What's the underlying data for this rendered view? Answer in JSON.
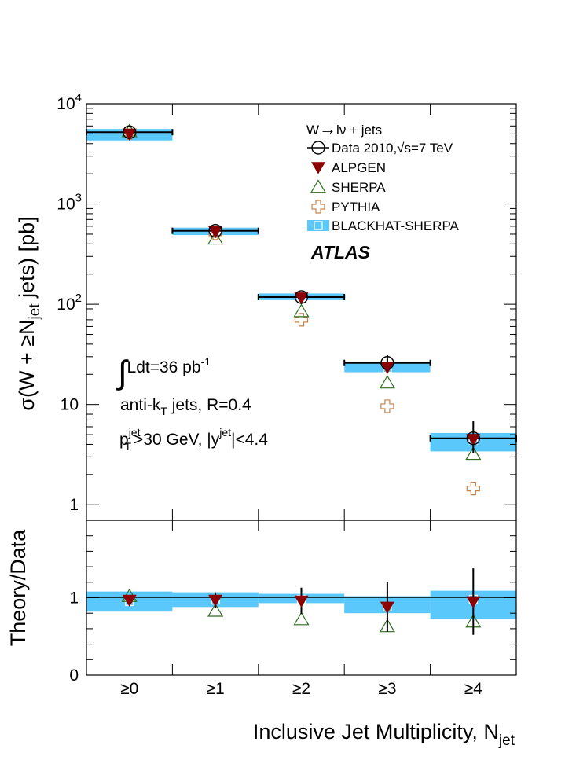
{
  "chart_data": [
    {
      "type": "scatter",
      "panel": "main",
      "ylabel": "σ(W + ≥N_jet jets) [pb]",
      "ylabel_parts": {
        "main": "σ(W + ≥N",
        "sub": "jet",
        "tail": " jets) [pb]"
      },
      "yscale": "log",
      "ylim": [
        0.7,
        10000
      ],
      "yticks": [
        {
          "value": 1,
          "label": "1"
        },
        {
          "value": 10,
          "label": "10"
        },
        {
          "value": 100,
          "base": "10",
          "exp": "2"
        },
        {
          "value": 1000,
          "base": "10",
          "exp": "3"
        },
        {
          "value": 10000,
          "base": "10",
          "exp": "4"
        }
      ],
      "categories": [
        "≥0",
        "≥1",
        "≥2",
        "≥3",
        "≥4"
      ],
      "series": [
        {
          "name": "Data 2010,√s=7 TeV",
          "marker": "open-circle",
          "values": [
            5200,
            540,
            118,
            26,
            4.6
          ],
          "err_low": [
            400,
            45,
            12,
            4,
            1.3
          ],
          "err_high": [
            400,
            45,
            12,
            5,
            2.2
          ]
        },
        {
          "name": "ALPGEN",
          "marker": "down-triangle",
          "values": [
            5000,
            530,
            116,
            23.5,
            4.5
          ]
        },
        {
          "name": "SHERPA",
          "marker": "open-triangle",
          "values": [
            5300,
            450,
            85,
            16.5,
            3.2
          ]
        },
        {
          "name": "PYTHIA",
          "marker": "open-cross",
          "values": [
            5100,
            510,
            70,
            9.6,
            1.45
          ]
        },
        {
          "name": "BLACKHAT-SHERPA",
          "marker": "band",
          "values": [
            5000,
            545,
            120,
            24,
            4.5
          ],
          "band_low": [
            4300,
            490,
            110,
            21,
            3.4
          ],
          "band_high": [
            5600,
            580,
            128,
            26.5,
            5.2
          ],
          "marker_values": [
            5000,
            540,
            118,
            23,
            4.4
          ]
        }
      ],
      "legend": {
        "placement": "top-right",
        "header": "W→lν + jets",
        "header_parts": {
          "pre": "W",
          "arrow": "→",
          "post": "lν + jets"
        },
        "entries": [
          "Data 2010,√s=7 TeV",
          "ALPGEN",
          "SHERPA",
          "PYTHIA",
          "BLACKHAT-SHERPA"
        ]
      },
      "annotations": {
        "atlas": "ATLAS",
        "lumi": {
          "integral": "∫",
          "text": "Ldt=36 pb",
          "sup": "-1"
        },
        "jets": {
          "pre": "anti-k",
          "sub": "T",
          "post": " jets, R=0.4"
        },
        "cuts": {
          "p": "p",
          "p_sup": "jet",
          "p_sub": "T",
          "mid": ">30 GeV, |y",
          "y_sup": "jet",
          "end": "|<4.4"
        }
      }
    },
    {
      "type": "scatter",
      "panel": "ratio",
      "ylabel": "Theory/Data",
      "ylim": [
        0,
        2
      ],
      "yticks": [
        {
          "value": 0,
          "label": "0"
        },
        {
          "value": 1,
          "label": "1"
        }
      ],
      "reference_line": 1,
      "categories": [
        "≥0",
        "≥1",
        "≥2",
        "≥3",
        "≥4"
      ],
      "xlabel": "Inclusive Jet Multiplicity, N_jet",
      "xlabel_parts": {
        "main": "Inclusive Jet Multiplicity, N",
        "sub": "jet"
      },
      "series": [
        {
          "name": "ALPGEN",
          "marker": "down-triangle",
          "values": [
            0.97,
            0.97,
            0.96,
            0.88,
            0.95
          ],
          "err": [
            0.05,
            0.1,
            0.17,
            0.32,
            0.43
          ]
        },
        {
          "name": "SHERPA",
          "marker": "open-triangle",
          "values": [
            1.02,
            0.83,
            0.72,
            0.63,
            0.69
          ]
        },
        {
          "name": "BLACKHAT-SHERPA",
          "marker": "band",
          "values": [
            0.97,
            0.97,
            0.98,
            0.9,
            0.95
          ],
          "band_low": [
            0.82,
            0.88,
            0.93,
            0.8,
            0.73
          ],
          "band_high": [
            1.08,
            1.07,
            1.05,
            1.02,
            1.09
          ],
          "marker_values": [
            0.95,
            0.97,
            0.98,
            0.88,
            0.98
          ]
        }
      ]
    }
  ],
  "colors": {
    "data": "#000000",
    "alpgen": "#8b0000",
    "sherpa": "#2e6e1e",
    "pythia": "#c8824a",
    "band": "#5ac8fa",
    "band_marker": "#ffffff"
  }
}
